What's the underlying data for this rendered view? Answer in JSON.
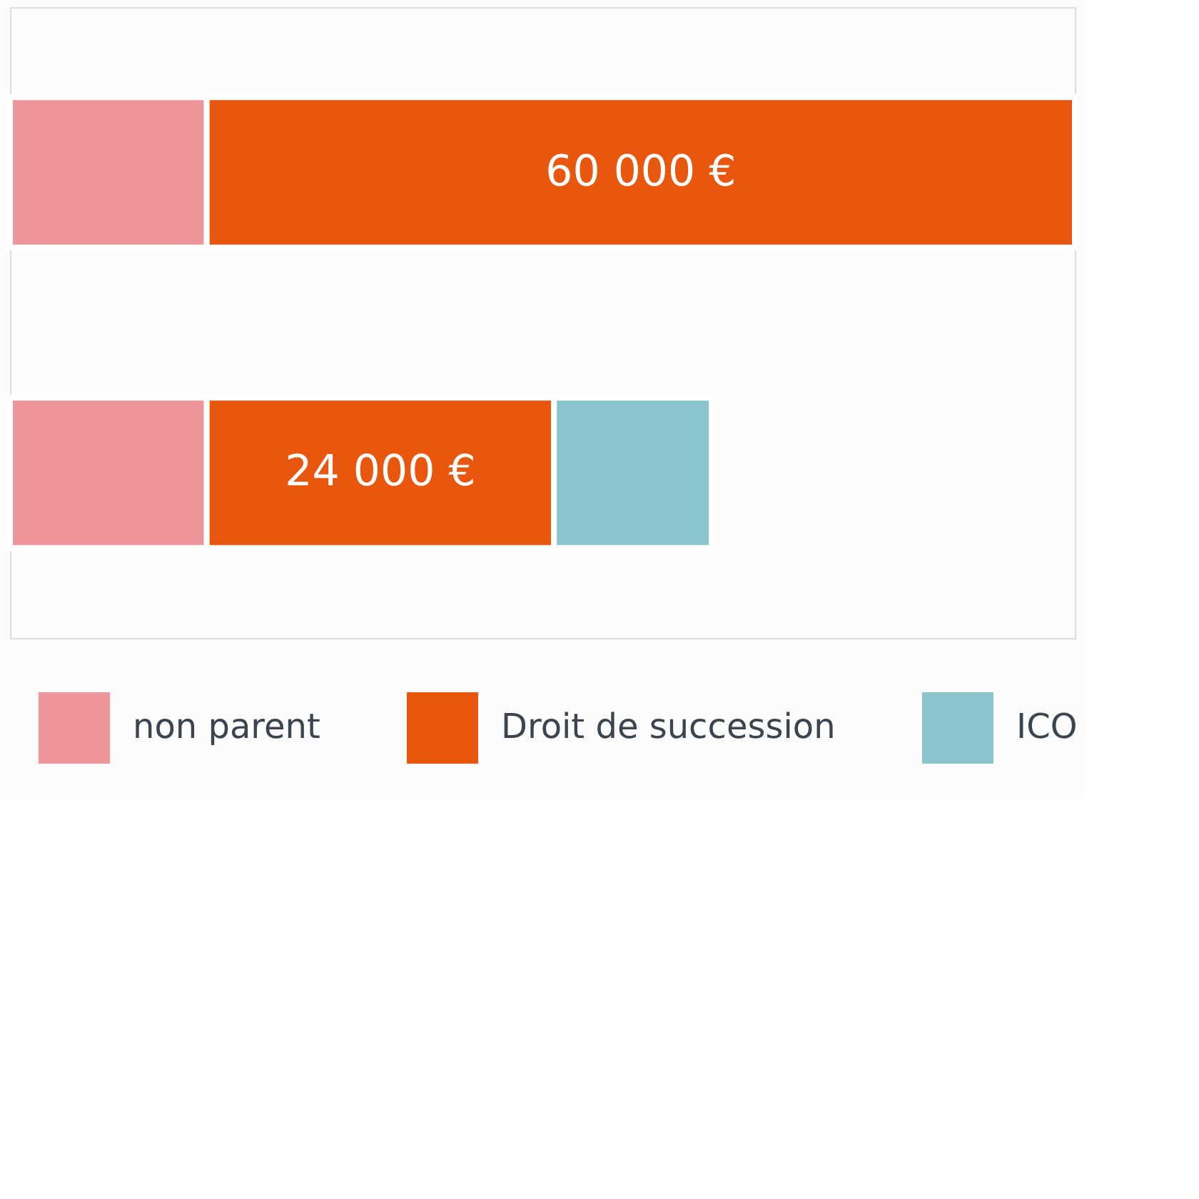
{
  "chart_data": {
    "type": "bar",
    "orientation": "horizontal",
    "stacked": true,
    "categories": [
      null,
      null
    ],
    "series": [
      {
        "name": "non parent",
        "color": "#ee959b",
        "values": [
          13600,
          13600
        ]
      },
      {
        "name": "Droit de succession",
        "color": "#e9570f",
        "values": [
          60000,
          24000
        ],
        "value_labels": [
          "60 000 €",
          "24 000 €"
        ]
      },
      {
        "name": "ICO",
        "color": "#8bc4cd",
        "values": [
          null,
          10900
        ]
      }
    ],
    "xlim": [
      0,
      73600
    ],
    "legend": "bottom",
    "tick_labels": false
  }
}
